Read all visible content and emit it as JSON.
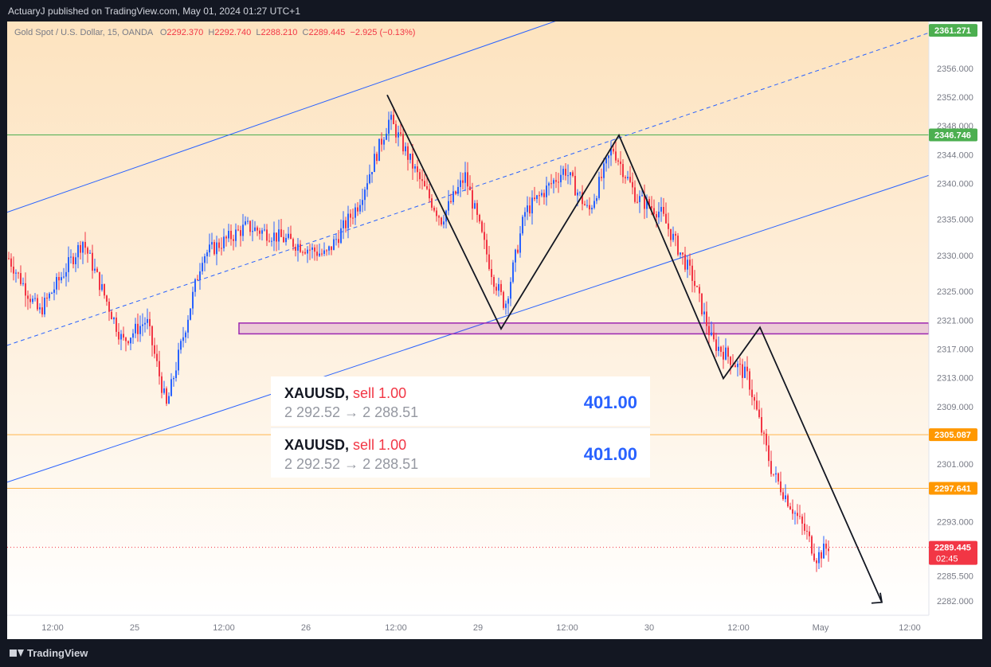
{
  "header": {
    "published_by": "ActuaryJ published on TradingView.com, May 01, 2024 01:27 UTC+1"
  },
  "legend": {
    "instrument": "Gold Spot / U.S. Dollar, 15, OANDA",
    "open_label": "O",
    "open": "2292.370",
    "high_label": "H",
    "high": "2292.740",
    "low_label": "L",
    "low": "2288.210",
    "close_label": "C",
    "close": "2289.445",
    "change": "−2.925 (−0.13%)"
  },
  "chart_data": {
    "type": "candlestick",
    "instrument": "Gold Spot / U.S. Dollar",
    "interval": "15",
    "source": "OANDA",
    "y_ticks": [
      "2356.000",
      "2352.000",
      "2348.000",
      "2344.000",
      "2340.000",
      "2335.000",
      "2330.000",
      "2325.000",
      "2321.000",
      "2317.000",
      "2313.000",
      "2309.000",
      "2301.000",
      "2293.000",
      "2285.500",
      "2282.000"
    ],
    "x_ticks": [
      "12:00",
      "25",
      "12:00",
      "26",
      "12:00",
      "29",
      "12:00",
      "30",
      "12:00",
      "May",
      "12:00"
    ],
    "ylim": [
      2280,
      2362.5
    ],
    "price_tags": [
      {
        "value": "2361.271",
        "color": "#4caf50"
      },
      {
        "value": "2346.746",
        "color": "#4caf50"
      },
      {
        "value": "2305.087",
        "color": "#ff9800"
      },
      {
        "value": "2297.641",
        "color": "#ff9800"
      },
      {
        "value": "2289.445",
        "color": "#f23645",
        "countdown": "02:45"
      }
    ],
    "horizontal_lines": [
      {
        "price": 2346.746,
        "color": "#4caf50"
      },
      {
        "price": 2305.087,
        "color": "#ffb74d"
      },
      {
        "price": 2297.641,
        "color": "#ffb74d"
      },
      {
        "price": 2289.445,
        "color": "#f23645",
        "style": "dotted"
      }
    ],
    "zone": {
      "top": 2320.6,
      "bottom": 2319.1
    },
    "channel": {
      "upper": [
        [
          0,
          2336.0
        ],
        [
          700,
          2363.0
        ]
      ],
      "middle": [
        [
          0,
          2317.5
        ],
        [
          1167,
          2361.3
        ]
      ],
      "lower": [
        [
          0,
          2298.5
        ],
        [
          1167,
          2341.5
        ]
      ]
    },
    "path": [
      [
        477,
        2352.3
      ],
      [
        620,
        2319.8
      ],
      [
        768,
        2346.7
      ],
      [
        899,
        2312.9
      ],
      [
        945,
        2320.0
      ],
      [
        1098,
        2281.8
      ]
    ],
    "up_color": "#2962ff",
    "down_color": "#f23645"
  },
  "trades": [
    {
      "symbol": "XAUUSD",
      "sep": ",",
      "side": "sell 1.00",
      "prices": "2 292.52 → 2 288.51",
      "pnl": "401.00"
    },
    {
      "symbol": "XAUUSD",
      "sep": ",",
      "side": "sell 1.00",
      "prices": "2 292.52 → 2 288.51",
      "pnl": "401.00"
    }
  ],
  "footer": {
    "brand": "TradingView"
  }
}
